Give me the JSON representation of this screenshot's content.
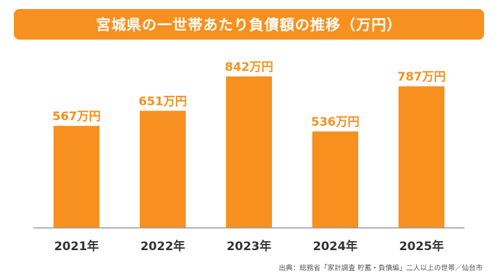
{
  "chart_data": {
    "type": "bar",
    "title": "宮城県の一世帯あたり負債額の推移（万円）",
    "categories": [
      "2021年",
      "2022年",
      "2023年",
      "2024年",
      "2025年"
    ],
    "values": [
      567,
      651,
      842,
      536,
      787
    ],
    "value_labels": [
      "567万円",
      "651万円",
      "842万円",
      "536万円",
      "787万円"
    ],
    "unit": "万円",
    "xlabel": "",
    "ylabel": "",
    "ylim": [
      0,
      900
    ],
    "grid": false,
    "legend": "none",
    "bar_color": "#f7901e"
  },
  "source": "出典：総務省「家計調査 貯蓄・負債編」二人以上の世帯／仙台市"
}
